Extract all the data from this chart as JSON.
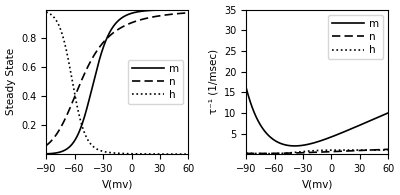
{
  "V_range": [
    -90,
    60
  ],
  "left_ylabel": "Steady State",
  "right_ylabel": "τ⁻¹ (1/msec)",
  "xlabel": "V(mv)",
  "left_ylim": [
    0,
    1.0
  ],
  "right_ylim": [
    0,
    35
  ],
  "left_yticks": [
    0.2,
    0.4,
    0.6,
    0.8
  ],
  "right_yticks": [
    5,
    10,
    15,
    20,
    25,
    30,
    35
  ],
  "xticks": [
    -90,
    -60,
    -30,
    0,
    30,
    60
  ],
  "legend_labels": [
    "m",
    "n",
    "h"
  ],
  "figsize": [
    4.0,
    1.95
  ],
  "dpi": 100
}
